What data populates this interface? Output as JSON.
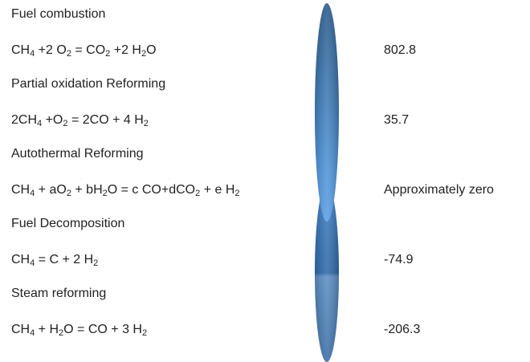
{
  "reactions": [
    {
      "name": "Fuel combustion",
      "equation": [
        {
          "t": "CH"
        },
        {
          "sub": "4"
        },
        {
          "t": " +2 O"
        },
        {
          "sub": "2"
        },
        {
          "t": " = CO"
        },
        {
          "sub": "2"
        },
        {
          "t": " +2 H"
        },
        {
          "sub": "2"
        },
        {
          "t": "O"
        }
      ],
      "value": 802.8
    },
    {
      "name": "Partial oxidation Reforming",
      "equation": [
        {
          "t": "2CH"
        },
        {
          "sub": "4"
        },
        {
          "t": " +O"
        },
        {
          "sub": "2"
        },
        {
          "t": " = 2CO + 4 H"
        },
        {
          "sub": "2"
        }
      ],
      "value": 35.7
    },
    {
      "name": "Autothermal Reforming",
      "equation": [
        {
          "t": "CH"
        },
        {
          "sub": "4"
        },
        {
          "t": " + aO"
        },
        {
          "sub": "2"
        },
        {
          "t": " + bH"
        },
        {
          "sub": "2"
        },
        {
          "t": "O = c CO+dCO"
        },
        {
          "sub": "2"
        },
        {
          "t": " + e H"
        },
        {
          "sub": "2"
        }
      ],
      "value": "Approximately zero"
    },
    {
      "name": "Fuel Decomposition",
      "equation": [
        {
          "t": "CH"
        },
        {
          "sub": "4"
        },
        {
          "t": " = C + 2 H"
        },
        {
          "sub": "2"
        }
      ],
      "value": -74.9
    },
    {
      "name": "Steam reforming",
      "equation": [
        {
          "t": "CH"
        },
        {
          "sub": "4"
        },
        {
          "t": " + H"
        },
        {
          "sub": "2"
        },
        {
          "t": "O = CO + 3 H"
        },
        {
          "sub": "2"
        }
      ],
      "value": -206.3
    }
  ]
}
